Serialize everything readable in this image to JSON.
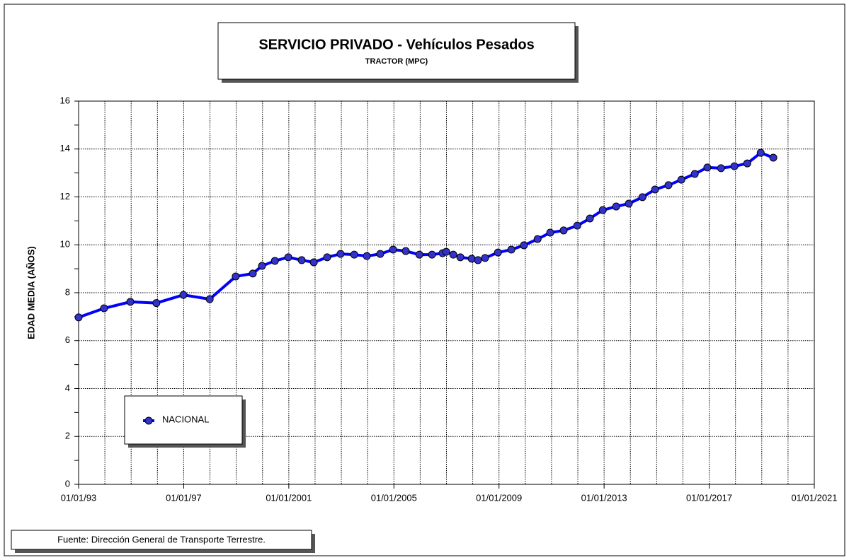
{
  "chart_data": {
    "type": "line",
    "title": "SERVICIO PRIVADO - Vehículos Pesados",
    "subtitle": "TRACTOR (MPC)",
    "y_label": "EDAD  MEDIA  (AÑOS)",
    "source": "Fuente: Dirección General de Transporte Terrestre.",
    "x": [
      1993.0,
      1993.97,
      1994.97,
      1995.96,
      1996.99,
      1997.99,
      1998.98,
      1999.63,
      1999.98,
      2000.47,
      2000.98,
      2001.49,
      2001.95,
      2002.46,
      2002.97,
      2003.49,
      2003.97,
      2004.48,
      2004.97,
      2005.45,
      2005.97,
      2006.45,
      2006.85,
      2006.99,
      2007.26,
      2007.53,
      2007.96,
      2008.2,
      2008.47,
      2008.96,
      2009.47,
      2009.95,
      2010.47,
      2010.95,
      2011.46,
      2011.98,
      2012.46,
      2012.95,
      2013.46,
      2013.94,
      2014.46,
      2014.94,
      2015.45,
      2015.94,
      2016.45,
      2016.93,
      2017.45,
      2017.96,
      2018.45,
      2018.96,
      2019.44
    ],
    "series": [
      {
        "name": "NACIONAL",
        "color": "#0000ff",
        "marker_color": "#3333cc",
        "values": [
          6.97,
          7.35,
          7.62,
          7.57,
          7.91,
          7.73,
          8.68,
          8.8,
          9.12,
          9.33,
          9.48,
          9.36,
          9.27,
          9.48,
          9.62,
          9.59,
          9.53,
          9.62,
          9.8,
          9.74,
          9.59,
          9.59,
          9.65,
          9.71,
          9.59,
          9.48,
          9.42,
          9.36,
          9.45,
          9.68,
          9.8,
          9.98,
          10.24,
          10.51,
          10.6,
          10.8,
          11.1,
          11.45,
          11.6,
          11.72,
          11.99,
          12.31,
          12.49,
          12.72,
          12.96,
          13.23,
          13.2,
          13.28,
          13.4,
          13.84,
          13.64
        ]
      }
    ],
    "xlim": [
      1993,
      2021
    ],
    "xticks": [
      {
        "value": 1993,
        "label": "01/01/93"
      },
      {
        "value": 1997,
        "label": "01/01/97"
      },
      {
        "value": 2001,
        "label": "01/01/2001"
      },
      {
        "value": 2005,
        "label": "01/01/2005"
      },
      {
        "value": 2009,
        "label": "01/01/2009"
      },
      {
        "value": 2013,
        "label": "01/01/2013"
      },
      {
        "value": 2017,
        "label": "01/01/2017"
      },
      {
        "value": 2021,
        "label": "01/01/2021"
      }
    ],
    "xminor": [
      1994,
      1995,
      1996,
      1998,
      1999,
      2000,
      2002,
      2003,
      2004,
      2006,
      2007,
      2008,
      2010,
      2011,
      2012,
      2014,
      2015,
      2016,
      2018,
      2019,
      2020
    ],
    "ylim": [
      0,
      16
    ],
    "yticks": [
      0,
      2,
      4,
      6,
      8,
      10,
      12,
      14,
      16
    ],
    "yminor": [
      1,
      3,
      5,
      7,
      9,
      11,
      13,
      15
    ],
    "grid": true
  }
}
